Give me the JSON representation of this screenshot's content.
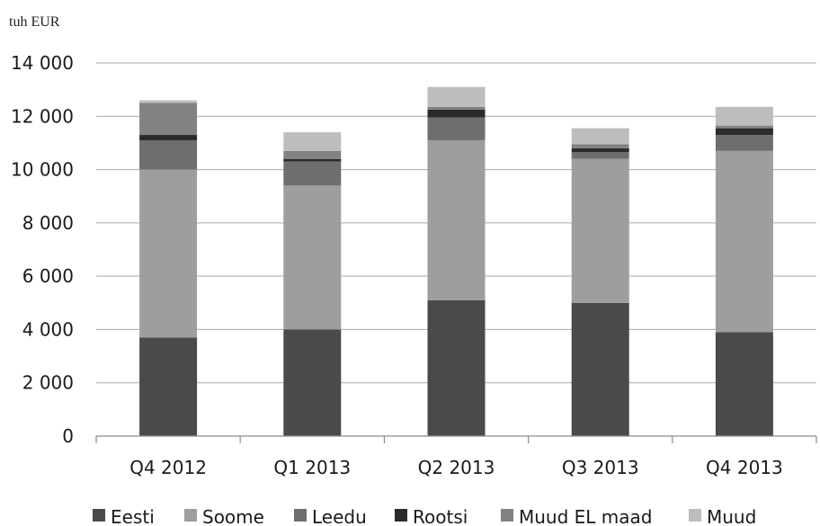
{
  "chart_data": {
    "type": "bar",
    "stacked": true,
    "unit_label": "tuh EUR",
    "categories": [
      "Q4 2012",
      "Q1 2013",
      "Q2 2013",
      "Q3 2013",
      "Q4 2013"
    ],
    "series": [
      {
        "name": "Eesti",
        "values": [
          3700,
          4000,
          5100,
          5000,
          3900
        ],
        "color": "#4a4a4a"
      },
      {
        "name": "Soome",
        "values": [
          6300,
          5400,
          6000,
          5400,
          6800
        ],
        "color": "#9e9e9e"
      },
      {
        "name": "Leedu",
        "values": [
          1100,
          900,
          850,
          250,
          600
        ],
        "color": "#6e6e6e"
      },
      {
        "name": "Rootsi",
        "values": [
          200,
          100,
          300,
          150,
          250
        ],
        "color": "#2b2b2b"
      },
      {
        "name": "Muud EL maad",
        "values": [
          1200,
          300,
          100,
          150,
          100
        ],
        "color": "#828282"
      },
      {
        "name": "Muud",
        "values": [
          100,
          700,
          750,
          600,
          700
        ],
        "color": "#bdbdbd"
      }
    ],
    "ylim": [
      0,
      14000
    ],
    "yticks": [
      0,
      2000,
      4000,
      6000,
      8000,
      10000,
      12000,
      14000
    ],
    "ytick_labels": [
      "0",
      "2 000",
      "4 000",
      "6 000",
      "8 000",
      "10 000",
      "12 000",
      "14 000"
    ],
    "grid": true,
    "legend_position": "bottom"
  }
}
